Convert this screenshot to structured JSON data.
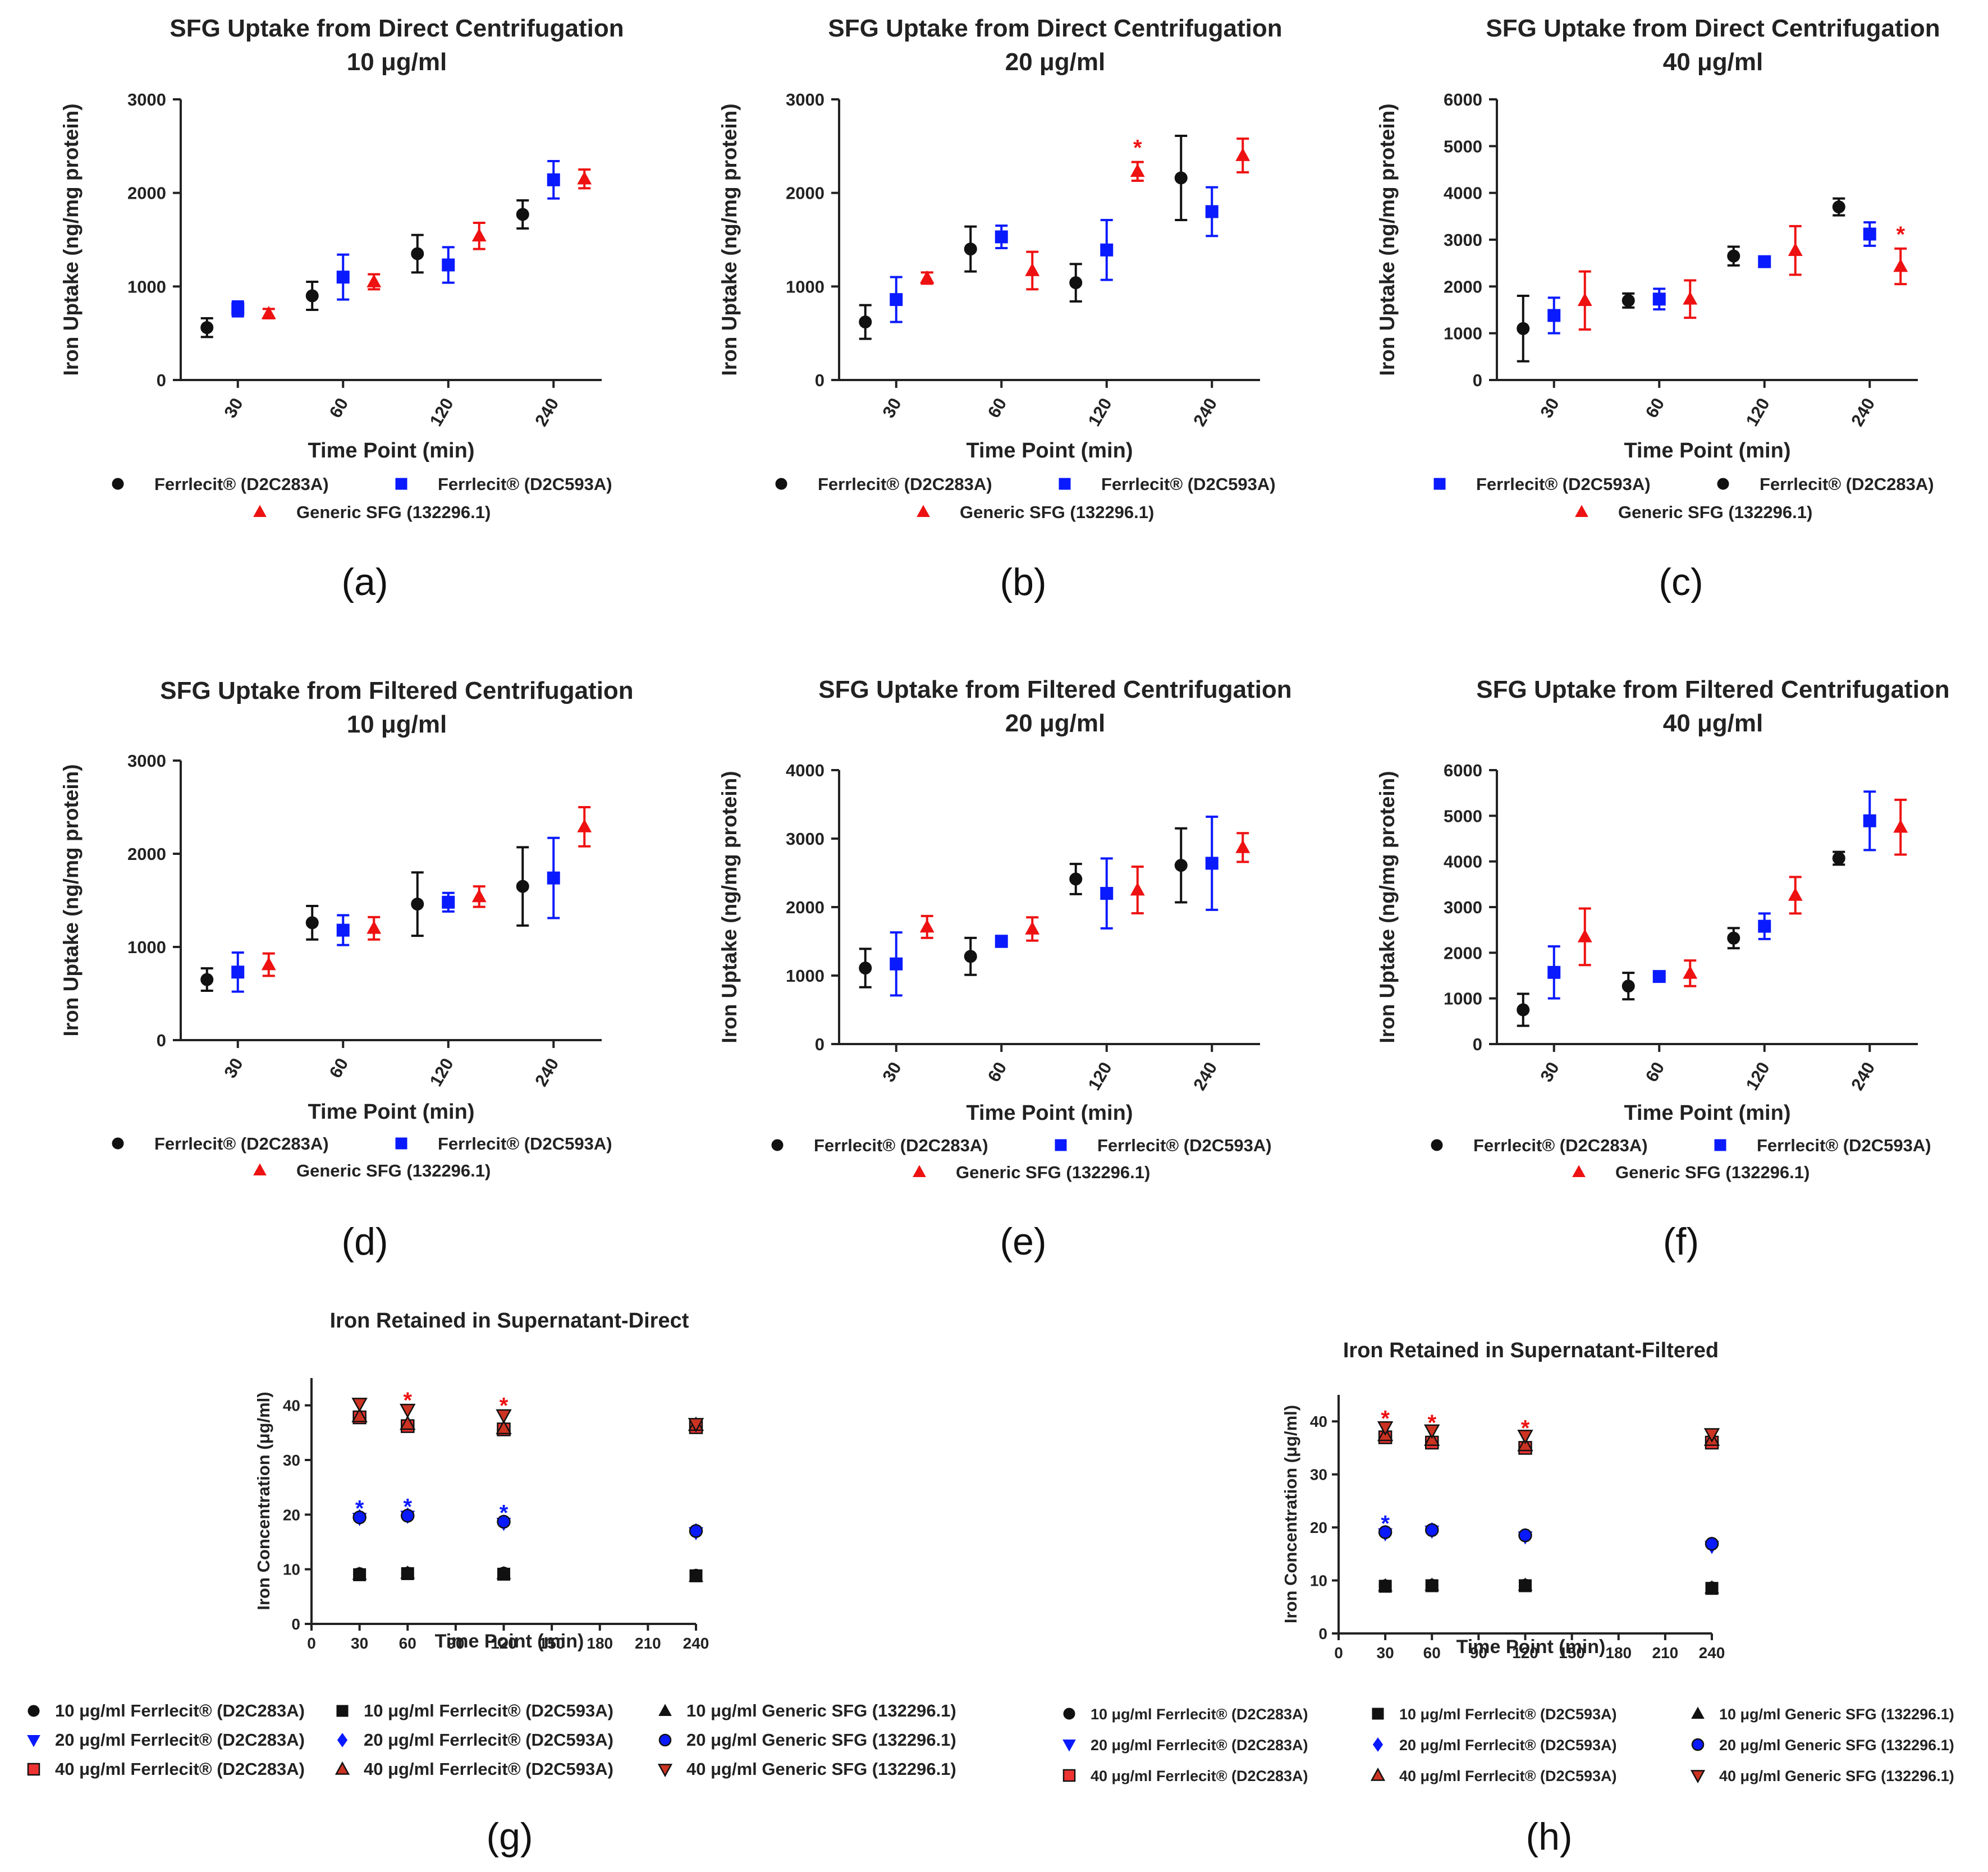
{
  "colors": {
    "black": "#111111",
    "blue": "#0a1aff",
    "red": "#ee1111",
    "axis": "#222222"
  },
  "chart_data": [
    {
      "id": "a",
      "type": "scatter",
      "panel_label": "(a)",
      "title": [
        "SFG Uptake from Direct Centrifugation",
        "10 μg/ml"
      ],
      "xlabel": "Time Point (min)",
      "ylabel": "Iron Uptake (ng/mg protein)",
      "ylim": [
        0,
        3000
      ],
      "yticks": [
        0,
        1000,
        2000,
        3000
      ],
      "categories": [
        "30",
        "60",
        "120",
        "240"
      ],
      "legend": [
        {
          "name": "Ferrlecit® (D2C283A)",
          "marker": "circle",
          "color": "black"
        },
        {
          "name": "Ferrlecit® (D2C593A)",
          "marker": "square",
          "color": "blue"
        },
        {
          "name": "Generic SFG (132296.1)",
          "marker": "triangle",
          "color": "red"
        }
      ],
      "series": [
        {
          "name": "Ferrlecit® (D2C283A)",
          "color": "black",
          "marker": "circle",
          "values": [
            560,
            900,
            1350,
            1770
          ],
          "errors": [
            100,
            150,
            200,
            150
          ]
        },
        {
          "name": "Ferrlecit® (D2C593A)",
          "color": "blue",
          "marker": "square",
          "values": [
            760,
            1100,
            1230,
            2140
          ],
          "errors": [
            80,
            240,
            190,
            200
          ]
        },
        {
          "name": "Generic SFG (132296.1)",
          "color": "red",
          "marker": "triangle",
          "values": [
            710,
            1050,
            1540,
            2150
          ],
          "errors": [
            50,
            80,
            140,
            100
          ]
        }
      ],
      "annotations": []
    },
    {
      "id": "b",
      "type": "scatter",
      "panel_label": "(b)",
      "title": [
        "SFG Uptake from Direct Centrifugation",
        "20 μg/ml"
      ],
      "xlabel": "Time Point (min)",
      "ylabel": "Iron Uptake (ng/mg protein)",
      "ylim": [
        0,
        3000
      ],
      "yticks": [
        0,
        1000,
        2000,
        3000
      ],
      "categories": [
        "30",
        "60",
        "120",
        "240"
      ],
      "legend": [
        {
          "name": "Ferrlecit® (D2C283A)",
          "marker": "circle",
          "color": "black"
        },
        {
          "name": "Ferrlecit® (D2C593A)",
          "marker": "square",
          "color": "blue"
        },
        {
          "name": "Generic SFG (132296.1)",
          "marker": "triangle",
          "color": "red"
        }
      ],
      "series": [
        {
          "name": "Ferrlecit® (D2C283A)",
          "color": "black",
          "marker": "circle",
          "values": [
            620,
            1400,
            1040,
            2160
          ],
          "errors": [
            180,
            240,
            200,
            450
          ]
        },
        {
          "name": "Ferrlecit® (D2C593A)",
          "color": "blue",
          "marker": "square",
          "values": [
            860,
            1530,
            1390,
            1800
          ],
          "errors": [
            240,
            120,
            320,
            260
          ]
        },
        {
          "name": "Generic SFG (132296.1)",
          "color": "red",
          "marker": "triangle",
          "values": [
            1090,
            1170,
            2230,
            2400
          ],
          "errors": [
            60,
            200,
            100,
            180
          ]
        }
      ],
      "annotations": [
        {
          "text": "*",
          "color": "red",
          "series": 2,
          "index": 2
        }
      ]
    },
    {
      "id": "c",
      "type": "scatter",
      "panel_label": "(c)",
      "title": [
        "SFG Uptake from Direct Centrifugation",
        "40 μg/ml"
      ],
      "xlabel": "Time Point (min)",
      "ylabel": "Iron Uptake (ng/mg protein)",
      "ylim": [
        0,
        6000
      ],
      "yticks": [
        0,
        1000,
        2000,
        3000,
        4000,
        5000,
        6000
      ],
      "categories": [
        "30",
        "60",
        "120",
        "240"
      ],
      "legend": [
        {
          "name": "Ferrlecit® (D2C593A)",
          "marker": "square",
          "color": "blue"
        },
        {
          "name": "Ferrlecit® (D2C283A)",
          "marker": "circle",
          "color": "black"
        },
        {
          "name": "Generic SFG (132296.1)",
          "marker": "triangle",
          "color": "red"
        }
      ],
      "series": [
        {
          "name": "Ferrlecit® (D2C283A)",
          "color": "black",
          "marker": "circle",
          "values": [
            1100,
            1700,
            2650,
            3700
          ],
          "errors": [
            700,
            150,
            200,
            180
          ]
        },
        {
          "name": "Ferrlecit® (D2C593A)",
          "color": "blue",
          "marker": "square",
          "values": [
            1380,
            1730,
            2530,
            3120
          ],
          "errors": [
            380,
            220,
            80,
            250
          ]
        },
        {
          "name": "Generic SFG (132296.1)",
          "color": "red",
          "marker": "triangle",
          "values": [
            1700,
            1730,
            2770,
            2430
          ],
          "errors": [
            620,
            400,
            520,
            380
          ]
        }
      ],
      "annotations": [
        {
          "text": "*",
          "color": "red",
          "series": 2,
          "index": 3
        }
      ]
    },
    {
      "id": "d",
      "type": "scatter",
      "panel_label": "(d)",
      "title": [
        "SFG Uptake from Filtered Centrifugation",
        "10 μg/ml"
      ],
      "xlabel": "Time Point (min)",
      "ylabel": "Iron Uptake (ng/mg protein)",
      "ylim": [
        0,
        3000
      ],
      "yticks": [
        0,
        1000,
        2000,
        3000
      ],
      "categories": [
        "30",
        "60",
        "120",
        "240"
      ],
      "legend": [
        {
          "name": "Ferrlecit® (D2C283A)",
          "marker": "circle",
          "color": "black"
        },
        {
          "name": "Ferrlecit® (D2C593A)",
          "marker": "square",
          "color": "blue"
        },
        {
          "name": "Generic SFG (132296.1)",
          "marker": "triangle",
          "color": "red"
        }
      ],
      "series": [
        {
          "name": "Ferrlecit® (D2C283A)",
          "color": "black",
          "marker": "circle",
          "values": [
            650,
            1260,
            1460,
            1650
          ],
          "errors": [
            120,
            180,
            340,
            420
          ]
        },
        {
          "name": "Ferrlecit® (D2C593A)",
          "color": "blue",
          "marker": "square",
          "values": [
            730,
            1180,
            1480,
            1740
          ],
          "errors": [
            210,
            160,
            100,
            430
          ]
        },
        {
          "name": "Generic SFG (132296.1)",
          "color": "red",
          "marker": "triangle",
          "values": [
            810,
            1200,
            1540,
            2290
          ],
          "errors": [
            120,
            120,
            110,
            210
          ]
        }
      ],
      "annotations": []
    },
    {
      "id": "e",
      "type": "scatter",
      "panel_label": "(e)",
      "title": [
        "SFG Uptake from Filtered Centrifugation",
        "20 μg/ml"
      ],
      "xlabel": "Time Point (min)",
      "ylabel": "Iron Uptake (ng/mg protein)",
      "ylim": [
        0,
        4000
      ],
      "yticks": [
        0,
        1000,
        2000,
        3000,
        4000
      ],
      "categories": [
        "30",
        "60",
        "120",
        "240"
      ],
      "legend": [
        {
          "name": "Ferrlecit® (D2C283A)",
          "marker": "circle",
          "color": "black"
        },
        {
          "name": "Ferrlecit® (D2C593A)",
          "marker": "square",
          "color": "blue"
        },
        {
          "name": "Generic SFG (132296.1)",
          "marker": "triangle",
          "color": "red"
        }
      ],
      "series": [
        {
          "name": "Ferrlecit® (D2C283A)",
          "color": "black",
          "marker": "circle",
          "values": [
            1110,
            1280,
            2410,
            2610
          ],
          "errors": [
            280,
            270,
            220,
            540
          ]
        },
        {
          "name": "Ferrlecit® (D2C593A)",
          "color": "blue",
          "marker": "square",
          "values": [
            1170,
            1500,
            2200,
            2640
          ],
          "errors": [
            460,
            80,
            510,
            680
          ]
        },
        {
          "name": "Generic SFG (132296.1)",
          "color": "red",
          "marker": "triangle",
          "values": [
            1710,
            1680,
            2250,
            2870
          ],
          "errors": [
            160,
            170,
            340,
            210
          ]
        }
      ],
      "annotations": []
    },
    {
      "id": "f",
      "type": "scatter",
      "panel_label": "(f)",
      "title": [
        "SFG Uptake from Filtered Centrifugation",
        "40 μg/ml"
      ],
      "xlabel": "Time Point (min)",
      "ylabel": "Iron Uptake (ng/mg protein)",
      "ylim": [
        0,
        6000
      ],
      "yticks": [
        0,
        1000,
        2000,
        3000,
        4000,
        5000,
        6000
      ],
      "categories": [
        "30",
        "60",
        "120",
        "240"
      ],
      "legend": [
        {
          "name": "Ferrlecit® (D2C283A)",
          "marker": "circle",
          "color": "black"
        },
        {
          "name": "Ferrlecit® (D2C593A)",
          "marker": "square",
          "color": "blue"
        },
        {
          "name": "Generic SFG (132296.1)",
          "marker": "triangle",
          "color": "red"
        }
      ],
      "series": [
        {
          "name": "Ferrlecit® (D2C283A)",
          "color": "black",
          "marker": "circle",
          "values": [
            750,
            1270,
            2320,
            4070
          ],
          "errors": [
            350,
            290,
            220,
            140
          ]
        },
        {
          "name": "Ferrlecit® (D2C593A)",
          "color": "blue",
          "marker": "square",
          "values": [
            1570,
            1480,
            2580,
            4890
          ],
          "errors": [
            570,
            70,
            280,
            640
          ]
        },
        {
          "name": "Generic SFG (132296.1)",
          "color": "red",
          "marker": "triangle",
          "values": [
            2350,
            1550,
            3260,
            4750
          ],
          "errors": [
            620,
            280,
            400,
            600
          ]
        }
      ],
      "annotations": []
    },
    {
      "id": "g",
      "type": "scatter",
      "panel_label": "(g)",
      "title": [
        "Iron Retained in Supernatant-Direct"
      ],
      "xlabel": "Time Point (min)",
      "ylabel": "Iron Concentration (μg/ml)",
      "xlim": [
        0,
        240
      ],
      "xticks": [
        0,
        30,
        60,
        90,
        120,
        150,
        180,
        210,
        240
      ],
      "ylim": [
        0,
        45
      ],
      "yticks": [
        0,
        10,
        20,
        30,
        40
      ],
      "x": [
        30,
        60,
        120,
        240
      ],
      "series": [
        {
          "name": "10 μg/ml Ferrlecit® (D2C283A)",
          "marker": "circle",
          "fill": "#111111",
          "edge": "#111111",
          "values": [
            9.2,
            9.3,
            9.3,
            8.9
          ]
        },
        {
          "name": "10 μg/ml Ferrlecit® (D2C593A)",
          "marker": "square",
          "fill": "#111111",
          "edge": "#111111",
          "values": [
            9.0,
            9.2,
            9.1,
            8.8
          ]
        },
        {
          "name": "10 μg/ml Generic SFG (132296.1)",
          "marker": "triangle",
          "fill": "#111111",
          "edge": "#111111",
          "values": [
            9.1,
            9.3,
            9.2,
            8.7
          ]
        },
        {
          "name": "20 μg/ml Ferrlecit® (D2C283A)",
          "marker": "triangle-down",
          "fill": "#0a1aff",
          "edge": "#0a1aff",
          "values": [
            19.3,
            19.7,
            18.4,
            16.7
          ]
        },
        {
          "name": "20 μg/ml Ferrlecit® (D2C593A)",
          "marker": "diamond",
          "fill": "#0a1aff",
          "edge": "#0a1aff",
          "values": [
            19.6,
            19.9,
            18.6,
            17.0
          ]
        },
        {
          "name": "20 μg/ml Generic SFG (132296.1)",
          "marker": "circle",
          "fill": "#0a1aff",
          "edge": "#111111",
          "values": [
            19.5,
            19.8,
            18.7,
            17.0
          ]
        },
        {
          "name": "40 μg/ml Ferrlecit® (D2C283A)",
          "marker": "square",
          "fill": "#ee3333",
          "edge": "#111111",
          "values": [
            37.8,
            36.2,
            35.6,
            36.0
          ]
        },
        {
          "name": "40 μg/ml Ferrlecit® (D2C593A)",
          "marker": "triangle",
          "fill": "#cc3322",
          "edge": "#111111",
          "values": [
            38.0,
            36.6,
            35.8,
            36.4
          ]
        },
        {
          "name": "40 μg/ml Generic SFG (132296.1)",
          "marker": "triangle-down",
          "fill": "#cc3322",
          "edge": "#111111",
          "values": [
            40.3,
            39.2,
            38.2,
            36.6
          ]
        }
      ],
      "stars": [
        {
          "text": "*",
          "color": "blue",
          "x": 30,
          "y": 21.2
        },
        {
          "text": "*",
          "color": "blue",
          "x": 60,
          "y": 21.5
        },
        {
          "text": "*",
          "color": "blue",
          "x": 120,
          "y": 20.4
        },
        {
          "text": "*",
          "color": "red",
          "x": 60,
          "y": 41.0
        },
        {
          "text": "*",
          "color": "red",
          "x": 120,
          "y": 40.0
        }
      ]
    },
    {
      "id": "h",
      "type": "scatter",
      "panel_label": "(h)",
      "title": [
        "Iron Retained in Supernatant-Filtered"
      ],
      "xlabel": "Time Point (min)",
      "ylabel": "Iron Concentration (μg/ml)",
      "xlim": [
        0,
        240
      ],
      "xticks": [
        0,
        30,
        60,
        90,
        120,
        150,
        180,
        210,
        240
      ],
      "ylim": [
        0,
        45
      ],
      "yticks": [
        0,
        10,
        20,
        30,
        40
      ],
      "x": [
        30,
        60,
        120,
        240
      ],
      "series": [
        {
          "name": "10 μg/ml Ferrlecit® (D2C283A)",
          "marker": "circle",
          "fill": "#111111",
          "edge": "#111111",
          "values": [
            9.0,
            9.1,
            9.1,
            8.6
          ]
        },
        {
          "name": "10 μg/ml Ferrlecit® (D2C593A)",
          "marker": "square",
          "fill": "#111111",
          "edge": "#111111",
          "values": [
            8.9,
            9.0,
            9.0,
            8.5
          ]
        },
        {
          "name": "10 μg/ml Generic SFG (132296.1)",
          "marker": "triangle",
          "fill": "#111111",
          "edge": "#111111",
          "values": [
            9.0,
            9.1,
            9.1,
            8.6
          ]
        },
        {
          "name": "20 μg/ml Ferrlecit® (D2C283A)",
          "marker": "triangle-down",
          "fill": "#0a1aff",
          "edge": "#0a1aff",
          "values": [
            18.8,
            19.3,
            18.2,
            16.4
          ]
        },
        {
          "name": "20 μg/ml Ferrlecit® (D2C593A)",
          "marker": "diamond",
          "fill": "#0a1aff",
          "edge": "#0a1aff",
          "values": [
            19.0,
            19.5,
            18.4,
            16.8
          ]
        },
        {
          "name": "20 μg/ml Generic SFG (132296.1)",
          "marker": "circle",
          "fill": "#0a1aff",
          "edge": "#111111",
          "values": [
            19.1,
            19.5,
            18.5,
            16.9
          ]
        },
        {
          "name": "40 μg/ml Ferrlecit® (D2C283A)",
          "marker": "square",
          "fill": "#ee3333",
          "edge": "#111111",
          "values": [
            37.0,
            36.0,
            35.0,
            36.0
          ]
        },
        {
          "name": "40 μg/ml Ferrlecit® (D2C593A)",
          "marker": "triangle",
          "fill": "#cc3322",
          "edge": "#111111",
          "values": [
            37.4,
            36.5,
            35.5,
            36.5
          ]
        },
        {
          "name": "40 μg/ml Generic SFG (132296.1)",
          "marker": "triangle-down",
          "fill": "#cc3322",
          "edge": "#111111",
          "values": [
            38.9,
            38.3,
            37.3,
            37.6
          ]
        }
      ],
      "stars": [
        {
          "text": "*",
          "color": "blue",
          "x": 30,
          "y": 20.8
        },
        {
          "text": "*",
          "color": "red",
          "x": 30,
          "y": 40.6
        },
        {
          "text": "*",
          "color": "red",
          "x": 60,
          "y": 39.8
        },
        {
          "text": "*",
          "color": "red",
          "x": 120,
          "y": 38.8
        }
      ]
    }
  ]
}
